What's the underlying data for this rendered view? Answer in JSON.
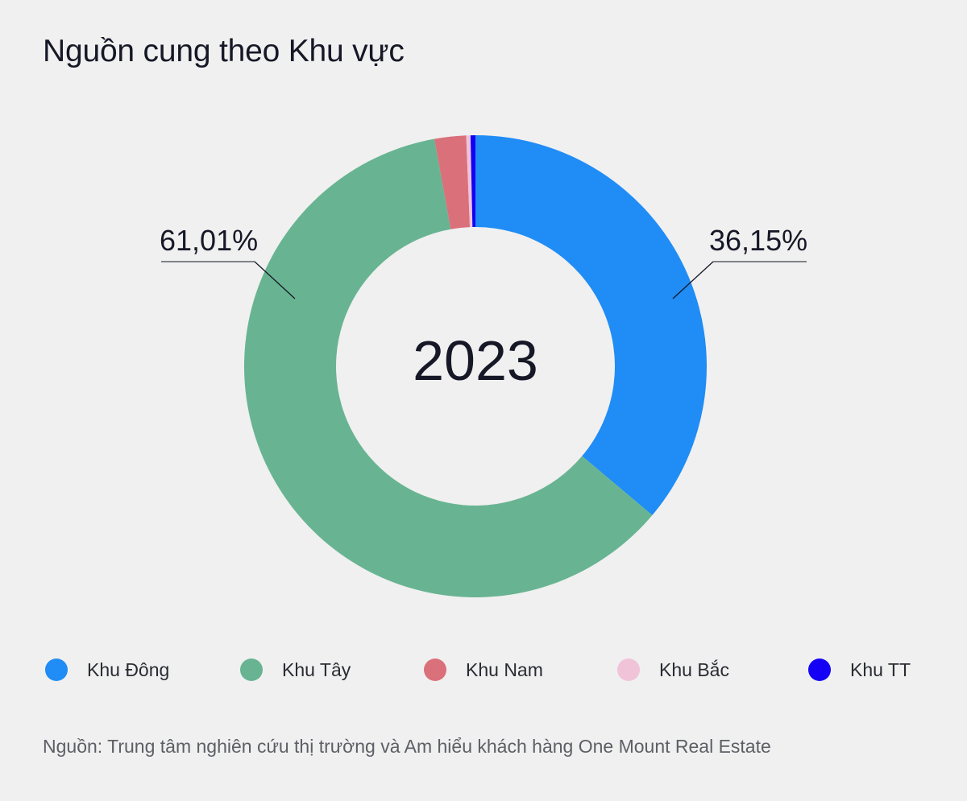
{
  "title": "Nguồn cung theo Khu vực",
  "center_label": "2023",
  "labels": {
    "left": "61,01%",
    "right": "36,15%"
  },
  "legend": [
    {
      "label": "Khu Đông",
      "color": "#208cf5"
    },
    {
      "label": "Khu Tây",
      "color": "#68b492"
    },
    {
      "label": "Khu Nam",
      "color": "#da707a"
    },
    {
      "label": "Khu Bắc",
      "color": "#f0c3d9"
    },
    {
      "label": "Khu TT",
      "color": "#1400f5"
    }
  ],
  "source": "Nguồn: Trung tâm nghiên cứu thị trường và Am hiểu khách hàng One Mount Real Estate",
  "chart_data": {
    "type": "pie",
    "subtype": "donut",
    "title": "Nguồn cung theo Khu vực",
    "center_text": "2023",
    "categories": [
      "Khu Đông",
      "Khu Tây",
      "Khu Nam",
      "Khu Bắc",
      "Khu TT"
    ],
    "values": [
      36.15,
      61.01,
      2.2,
      0.3,
      0.34
    ],
    "value_labels": [
      "36,15%",
      "61,01%",
      "",
      "",
      ""
    ],
    "colors": [
      "#208cf5",
      "#68b492",
      "#da707a",
      "#f0c3d9",
      "#1400f5"
    ],
    "start_angle_deg": 0,
    "direction": "clockwise",
    "legend_position": "bottom",
    "source": "Nguồn: Trung tâm nghiên cứu thị trường và Am hiểu khách hàng One Mount Real Estate"
  }
}
